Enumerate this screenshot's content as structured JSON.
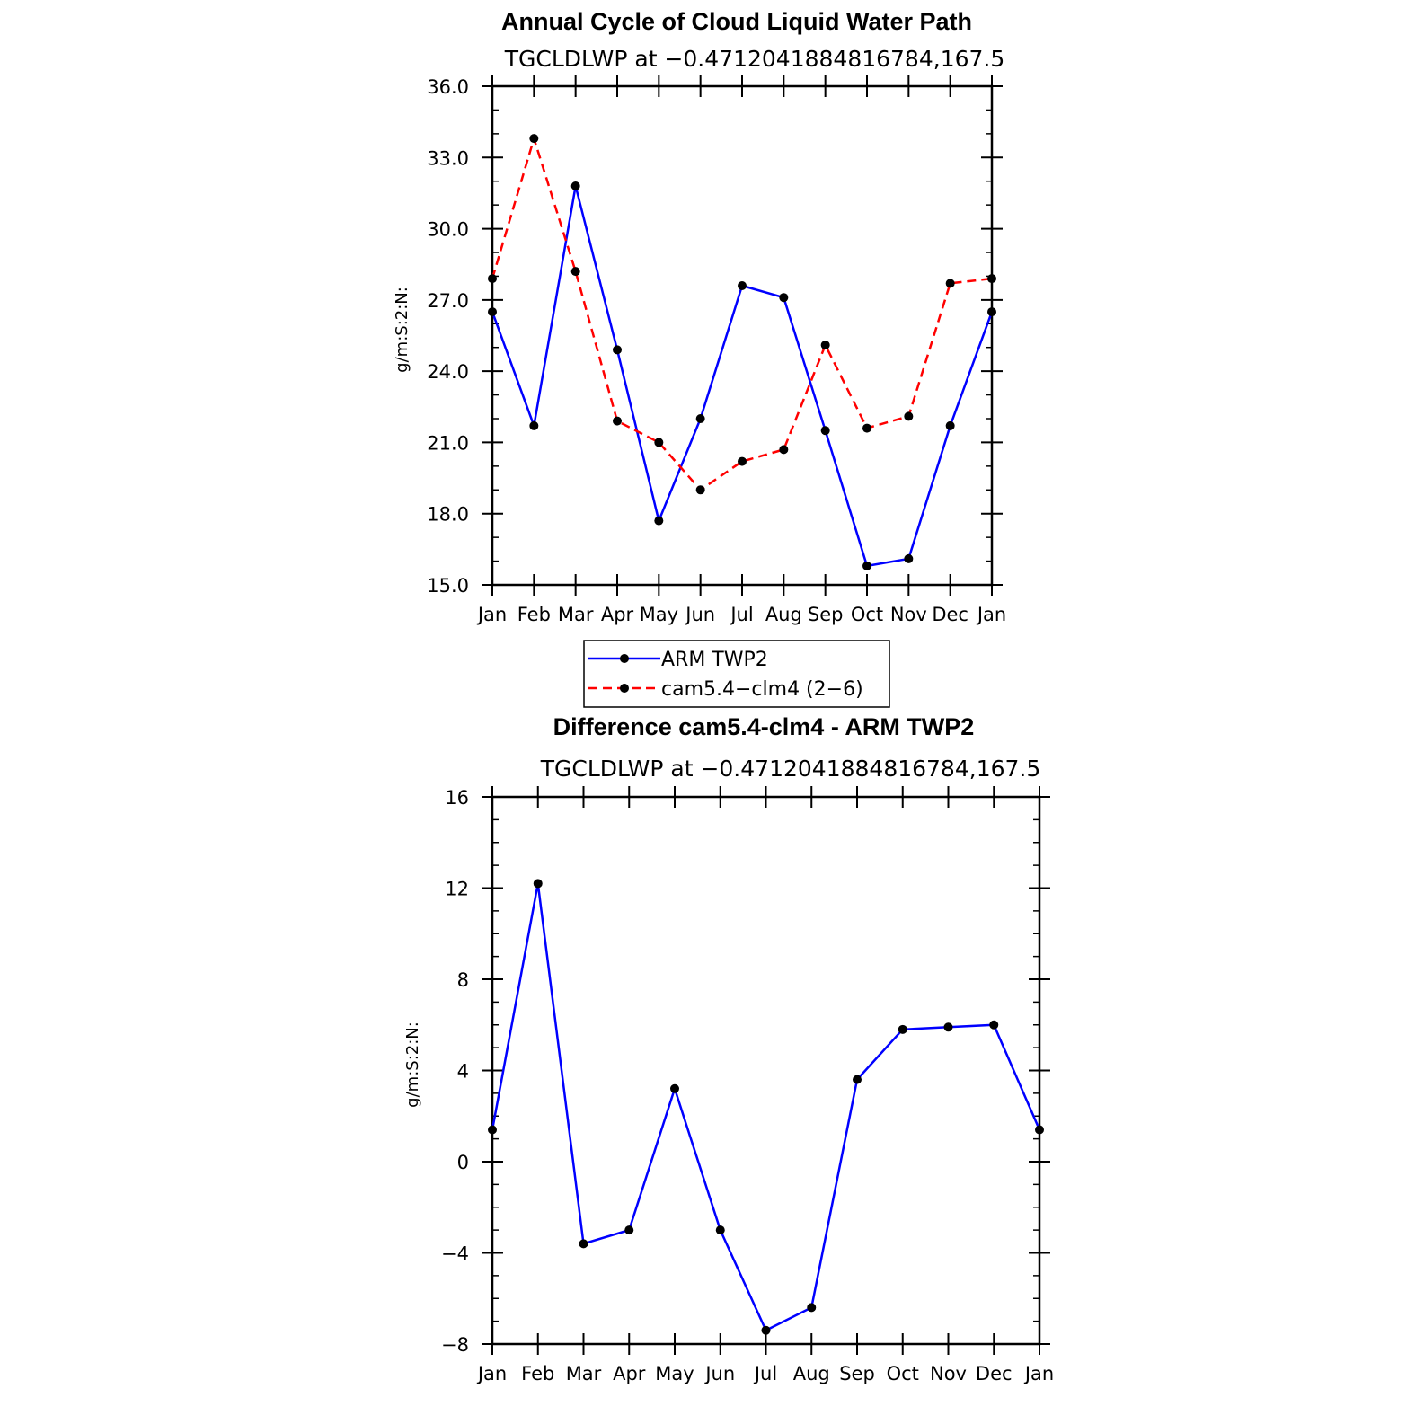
{
  "chart_data": [
    {
      "type": "line",
      "title": "Annual Cycle of Cloud Liquid Water Path",
      "subtitle": "TGCLDLWP at −0.4712041884816784,167.5",
      "xlabel": "",
      "ylabel": "g/m:S:2:N:",
      "categories": [
        "Jan",
        "Feb",
        "Mar",
        "Apr",
        "May",
        "Jun",
        "Jul",
        "Aug",
        "Sep",
        "Oct",
        "Nov",
        "Dec",
        "Jan"
      ],
      "ylim": [
        15.0,
        36.0
      ],
      "yticks": [
        "15.0",
        "18.0",
        "21.0",
        "24.0",
        "27.0",
        "30.0",
        "33.0",
        "36.0"
      ],
      "series": [
        {
          "name": "ARM TWP2",
          "color": "#0000ff",
          "dash": "solid",
          "values": [
            26.5,
            21.7,
            31.8,
            24.9,
            17.7,
            22.0,
            27.6,
            27.1,
            21.5,
            15.8,
            16.1,
            21.7,
            26.5
          ]
        },
        {
          "name": "cam5.4−clm4 (2−6)",
          "color": "#ff0000",
          "dash": "dashed",
          "values": [
            27.9,
            33.8,
            28.2,
            21.9,
            21.0,
            19.0,
            20.2,
            20.7,
            25.1,
            21.6,
            22.1,
            27.7,
            27.9
          ]
        }
      ],
      "legend": "below"
    },
    {
      "type": "line",
      "title": "Difference cam5.4-clm4 - ARM TWP2",
      "subtitle": "TGCLDLWP at −0.4712041884816784,167.5",
      "xlabel": "",
      "ylabel": "g/m:S:2:N:",
      "categories": [
        "Jan",
        "Feb",
        "Mar",
        "Apr",
        "May",
        "Jun",
        "Jul",
        "Aug",
        "Sep",
        "Oct",
        "Nov",
        "Dec",
        "Jan"
      ],
      "ylim": [
        -8,
        16
      ],
      "yticks": [
        "−8",
        "−4",
        "0",
        "4",
        "8",
        "12",
        "16"
      ],
      "series": [
        {
          "color": "#0000ff",
          "dash": "solid",
          "values": [
            1.4,
            12.2,
            -3.6,
            -3.0,
            3.2,
            -3.0,
            -7.4,
            -6.4,
            3.6,
            5.8,
            5.9,
            6.0,
            1.4
          ]
        }
      ]
    }
  ]
}
